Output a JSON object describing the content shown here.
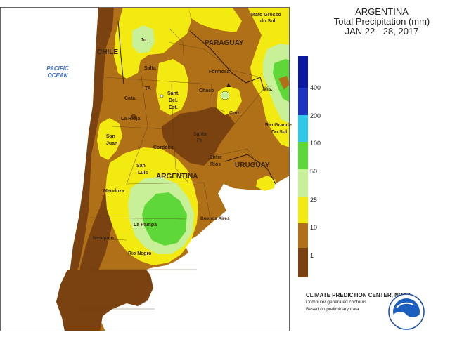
{
  "title": {
    "line1": "ARGENTINA",
    "line2": "Total Precipitation (mm)",
    "line3": "JAN 22 - 28, 2017"
  },
  "legend": {
    "ticks": [
      "1",
      "10",
      "25",
      "50",
      "100",
      "200",
      "400"
    ],
    "colors": [
      "#7a4210",
      "#b07018",
      "#f2ea10",
      "#c8f098",
      "#5ed838",
      "#30c8e8",
      "#1c34c0",
      "#0a1aa0"
    ]
  },
  "labels": {
    "pacific": "PACIFIC",
    "ocean": "OCEAN",
    "chile": "CHILE",
    "paraguay": "PARAGUAY",
    "argentina": "ARGENTINA",
    "uruguay": "URUGUAY",
    "matogrosso": "Mato Grosso",
    "dosul": "do Sul",
    "ju": "Ju.",
    "salta": "Salta",
    "formosa": "Formosa",
    "ta": "TA",
    "sant": "Sant.",
    "del": "Del.",
    "est": "Est.",
    "chaco": "Chaco",
    "mis": "Mis.",
    "cata": "Cata.",
    "corr": "Corr.",
    "larioja": "La Rioja",
    "riogrande": "Rio Grande",
    "dosul2": "Do Sul",
    "santa": "Santa",
    "fe": "Fe",
    "sanjuan1": "San",
    "sanjuan2": "Juan",
    "cordoba": "Cordoba",
    "entre": "Entre",
    "rios": "Rios",
    "sanluis1": "San",
    "sanluis2": "Luis",
    "mendoza": "Mendoza",
    "lapampa": "La Pampa",
    "buenosaires": "Buenos Aires",
    "neuquen": "Neuquen",
    "rionegro": "Rio Negro"
  },
  "credit": {
    "line1": "CLIMATE PREDICTION CENTER, NOAA",
    "line2": "Computer generated contours",
    "line3": "Based on preliminary data",
    "logo_text": "NOAA"
  }
}
